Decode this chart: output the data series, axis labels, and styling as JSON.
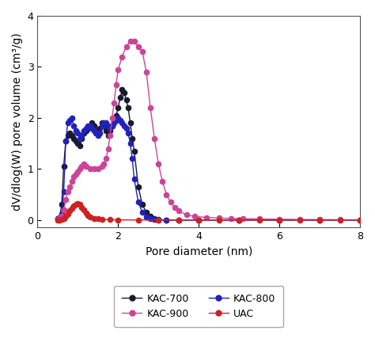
{
  "xlabel": "Pore diameter (nm)",
  "ylabel": "dV/dlog(W) pore volume (cm³/g)",
  "xlim": [
    0,
    8
  ],
  "ylim": [
    -0.15,
    4.0
  ],
  "yticks": [
    0,
    1,
    2,
    3,
    4
  ],
  "xticks": [
    0,
    2,
    4,
    6,
    8
  ],
  "background_color": "#ffffff",
  "series": {
    "KAC-700": {
      "color": "#1a1a2e",
      "x": [
        0.5,
        0.55,
        0.6,
        0.65,
        0.7,
        0.75,
        0.8,
        0.85,
        0.9,
        0.95,
        1.0,
        1.05,
        1.1,
        1.15,
        1.2,
        1.25,
        1.3,
        1.35,
        1.4,
        1.45,
        1.5,
        1.55,
        1.6,
        1.65,
        1.7,
        1.75,
        1.8,
        1.85,
        1.9,
        1.95,
        2.0,
        2.05,
        2.1,
        2.15,
        2.2,
        2.25,
        2.3,
        2.35,
        2.4,
        2.5,
        2.6,
        2.7,
        2.8,
        2.9,
        3.0,
        3.2,
        3.5,
        4.0,
        5.0,
        6.0,
        7.0,
        8.0
      ],
      "y": [
        0.03,
        0.05,
        0.3,
        1.05,
        1.55,
        1.65,
        1.7,
        1.65,
        1.6,
        1.55,
        1.5,
        1.45,
        1.6,
        1.7,
        1.75,
        1.8,
        1.85,
        1.9,
        1.85,
        1.75,
        1.75,
        1.8,
        1.9,
        1.85,
        1.75,
        1.65,
        1.75,
        1.85,
        1.95,
        2.05,
        2.2,
        2.4,
        2.55,
        2.5,
        2.35,
        2.2,
        1.9,
        1.6,
        1.35,
        0.65,
        0.3,
        0.15,
        0.07,
        0.03,
        0.01,
        0.0,
        0.0,
        0.0,
        0.0,
        0.0,
        0.0,
        0.0
      ]
    },
    "KAC-800": {
      "color": "#2222bb",
      "x": [
        0.5,
        0.55,
        0.6,
        0.65,
        0.7,
        0.75,
        0.8,
        0.85,
        0.9,
        0.95,
        1.0,
        1.05,
        1.1,
        1.15,
        1.2,
        1.25,
        1.3,
        1.35,
        1.4,
        1.45,
        1.5,
        1.55,
        1.6,
        1.65,
        1.7,
        1.75,
        1.8,
        1.85,
        1.9,
        1.95,
        2.0,
        2.05,
        2.1,
        2.15,
        2.2,
        2.25,
        2.3,
        2.35,
        2.4,
        2.5,
        2.6,
        2.7,
        2.8,
        2.9,
        3.0,
        3.2,
        3.5,
        4.0,
        5.0,
        6.0,
        7.0,
        8.0
      ],
      "y": [
        0.02,
        0.04,
        0.12,
        0.55,
        1.55,
        1.9,
        1.95,
        2.0,
        1.85,
        1.75,
        1.7,
        1.6,
        1.65,
        1.75,
        1.8,
        1.85,
        1.85,
        1.8,
        1.75,
        1.7,
        1.65,
        1.7,
        1.85,
        1.9,
        1.9,
        1.85,
        1.8,
        1.85,
        1.9,
        1.95,
        2.0,
        1.95,
        1.9,
        1.85,
        1.8,
        1.7,
        1.5,
        1.2,
        0.8,
        0.35,
        0.15,
        0.06,
        0.02,
        0.01,
        0.0,
        0.0,
        0.0,
        0.0,
        0.0,
        0.0,
        0.0,
        0.0
      ]
    },
    "KAC-900": {
      "color": "#cc4499",
      "x": [
        0.5,
        0.55,
        0.6,
        0.65,
        0.7,
        0.75,
        0.8,
        0.85,
        0.9,
        0.95,
        1.0,
        1.05,
        1.1,
        1.15,
        1.2,
        1.3,
        1.4,
        1.5,
        1.6,
        1.65,
        1.7,
        1.75,
        1.8,
        1.85,
        1.9,
        1.95,
        2.0,
        2.1,
        2.2,
        2.3,
        2.4,
        2.5,
        2.6,
        2.7,
        2.8,
        2.9,
        3.0,
        3.1,
        3.2,
        3.3,
        3.4,
        3.5,
        3.7,
        3.9,
        4.2,
        4.5,
        4.8,
        5.1,
        5.5,
        6.0,
        6.5,
        7.0,
        7.5,
        8.0
      ],
      "y": [
        0.01,
        0.02,
        0.07,
        0.2,
        0.4,
        0.55,
        0.65,
        0.75,
        0.85,
        0.9,
        0.95,
        1.0,
        1.05,
        1.1,
        1.05,
        1.0,
        1.0,
        1.0,
        1.05,
        1.1,
        1.2,
        1.4,
        1.65,
        2.0,
        2.3,
        2.65,
        2.95,
        3.2,
        3.4,
        3.5,
        3.5,
        3.4,
        3.3,
        2.9,
        2.2,
        1.6,
        1.1,
        0.75,
        0.5,
        0.35,
        0.25,
        0.18,
        0.1,
        0.07,
        0.05,
        0.04,
        0.03,
        0.025,
        0.02,
        0.015,
        0.01,
        0.008,
        0.005,
        0.003
      ]
    },
    "UAC": {
      "color": "#cc2222",
      "x": [
        0.5,
        0.55,
        0.6,
        0.65,
        0.7,
        0.75,
        0.8,
        0.85,
        0.9,
        0.95,
        1.0,
        1.05,
        1.1,
        1.15,
        1.2,
        1.25,
        1.3,
        1.4,
        1.5,
        1.6,
        1.8,
        2.0,
        2.5,
        3.0,
        3.5,
        4.0,
        4.5,
        5.0,
        5.5,
        6.0,
        6.5,
        7.0,
        7.5,
        8.0
      ],
      "y": [
        0.0,
        0.0,
        0.01,
        0.03,
        0.07,
        0.12,
        0.18,
        0.23,
        0.27,
        0.3,
        0.32,
        0.3,
        0.25,
        0.2,
        0.14,
        0.09,
        0.06,
        0.03,
        0.02,
        0.01,
        0.005,
        0.002,
        0.0,
        0.0,
        0.0,
        0.0,
        0.0,
        0.0,
        0.0,
        0.0,
        0.0,
        0.0,
        0.0,
        0.0
      ]
    }
  },
  "marker_size": 4.5,
  "line_width": 1.0,
  "font_size_label": 10,
  "font_size_tick": 9,
  "font_size_legend": 9
}
